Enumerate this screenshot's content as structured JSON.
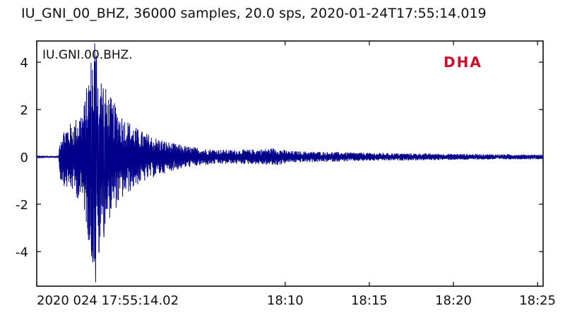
{
  "header": {
    "title": "IU_GNI_00_BHZ, 36000 samples, 20.0 sps, 2020-01-24T17:55:14.019"
  },
  "chart_data": {
    "type": "line",
    "title": "IU_GNI_00_BHZ, 36000 samples, 20.0 sps, 2020-01-24T17:55:14.019",
    "channel_label": "IU.GNI.00.BHZ.",
    "watermark": "DHA",
    "xlabel": "",
    "ylabel": "",
    "ylim": [
      -5.5,
      5
    ],
    "y_ticks": [
      4,
      2,
      0,
      -2,
      -4
    ],
    "y_tick_labels": [
      "4",
      "2",
      "0",
      "-2",
      "-4"
    ],
    "x_range_minutes": [
      0,
      30.1
    ],
    "x_ticks_minutes": [
      0,
      14.77,
      19.77,
      24.77,
      29.77
    ],
    "x_tick_labels": [
      "2020 024 17:55:14.02",
      "18:10",
      "18:15",
      "18:20",
      "18:25"
    ],
    "grid": false,
    "series": [
      {
        "color": "#00008b",
        "envelope": {
          "time_minutes": [
            0,
            1.3,
            1.4,
            1.7,
            2.2,
            2.8,
            3.3,
            3.6,
            3.9,
            4.5,
            5.2,
            6.0,
            7.0,
            8.0,
            9.0,
            10.0,
            11.5,
            13.0,
            14.2,
            15.0,
            17.0,
            20.0,
            25.0,
            30.1
          ],
          "amplitude": [
            0.02,
            0.05,
            1.0,
            1.3,
            1.5,
            2.2,
            4.6,
            5.0,
            3.2,
            2.4,
            1.7,
            1.2,
            0.85,
            0.6,
            0.45,
            0.35,
            0.3,
            0.32,
            0.38,
            0.25,
            0.22,
            0.17,
            0.13,
            0.1
          ]
        },
        "peaks": [
          {
            "time_minutes": 3.45,
            "value": 4.8
          },
          {
            "time_minutes": 3.5,
            "value": -5.3
          },
          {
            "time_minutes": 3.55,
            "value": 4.2
          },
          {
            "time_minutes": 3.25,
            "value": -4.2
          },
          {
            "time_minutes": 3.7,
            "value": -4.0
          },
          {
            "time_minutes": 4.0,
            "value": -3.4
          },
          {
            "time_minutes": 3.95,
            "value": 2.9
          }
        ]
      }
    ]
  }
}
